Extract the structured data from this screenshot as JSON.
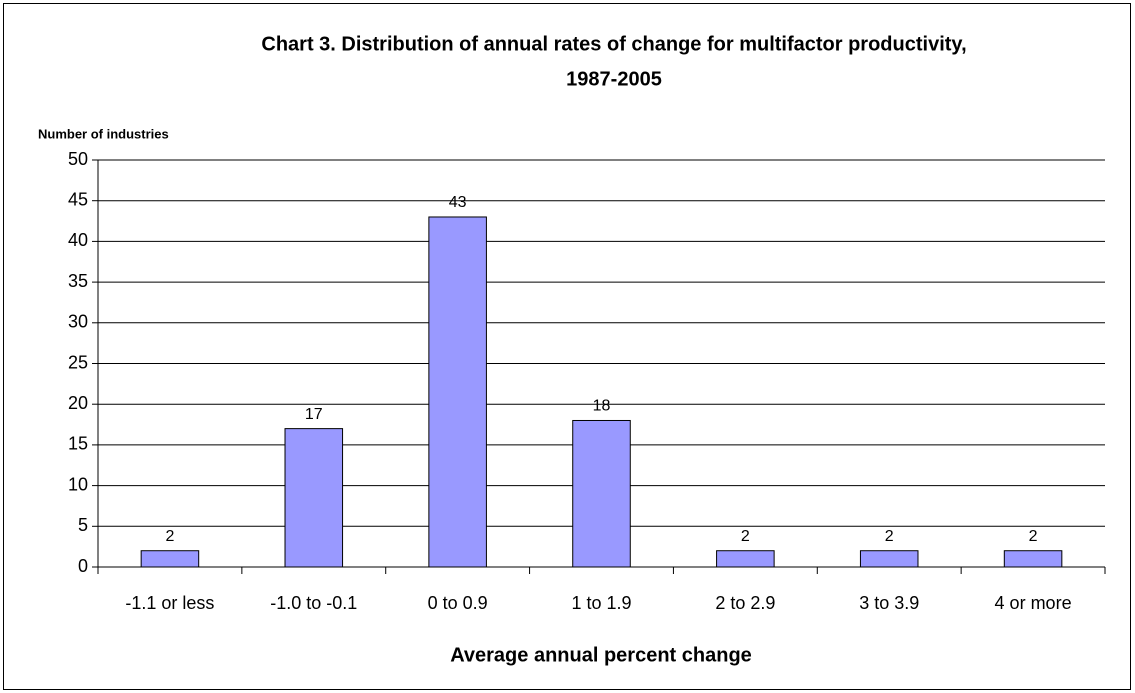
{
  "chart_data": {
    "type": "bar",
    "title": [
      "Chart 3. Distribution of annual rates of change for multifactor productivity,",
      "1987-2005"
    ],
    "y_label": "Number of industries",
    "x_label": "Average annual percent change",
    "categories": [
      "-1.1 or less",
      "-1.0 to -0.1",
      "0 to 0.9",
      "1 to 1.9",
      "2 to 2.9",
      "3 to 3.9",
      "4 or more"
    ],
    "values": [
      2,
      17,
      43,
      18,
      2,
      2,
      2
    ],
    "color": "#9999ff",
    "ylim": [
      0,
      50
    ],
    "yticks": [
      0,
      5,
      10,
      15,
      20,
      25,
      30,
      35,
      40,
      45,
      50
    ],
    "grid": true
  }
}
